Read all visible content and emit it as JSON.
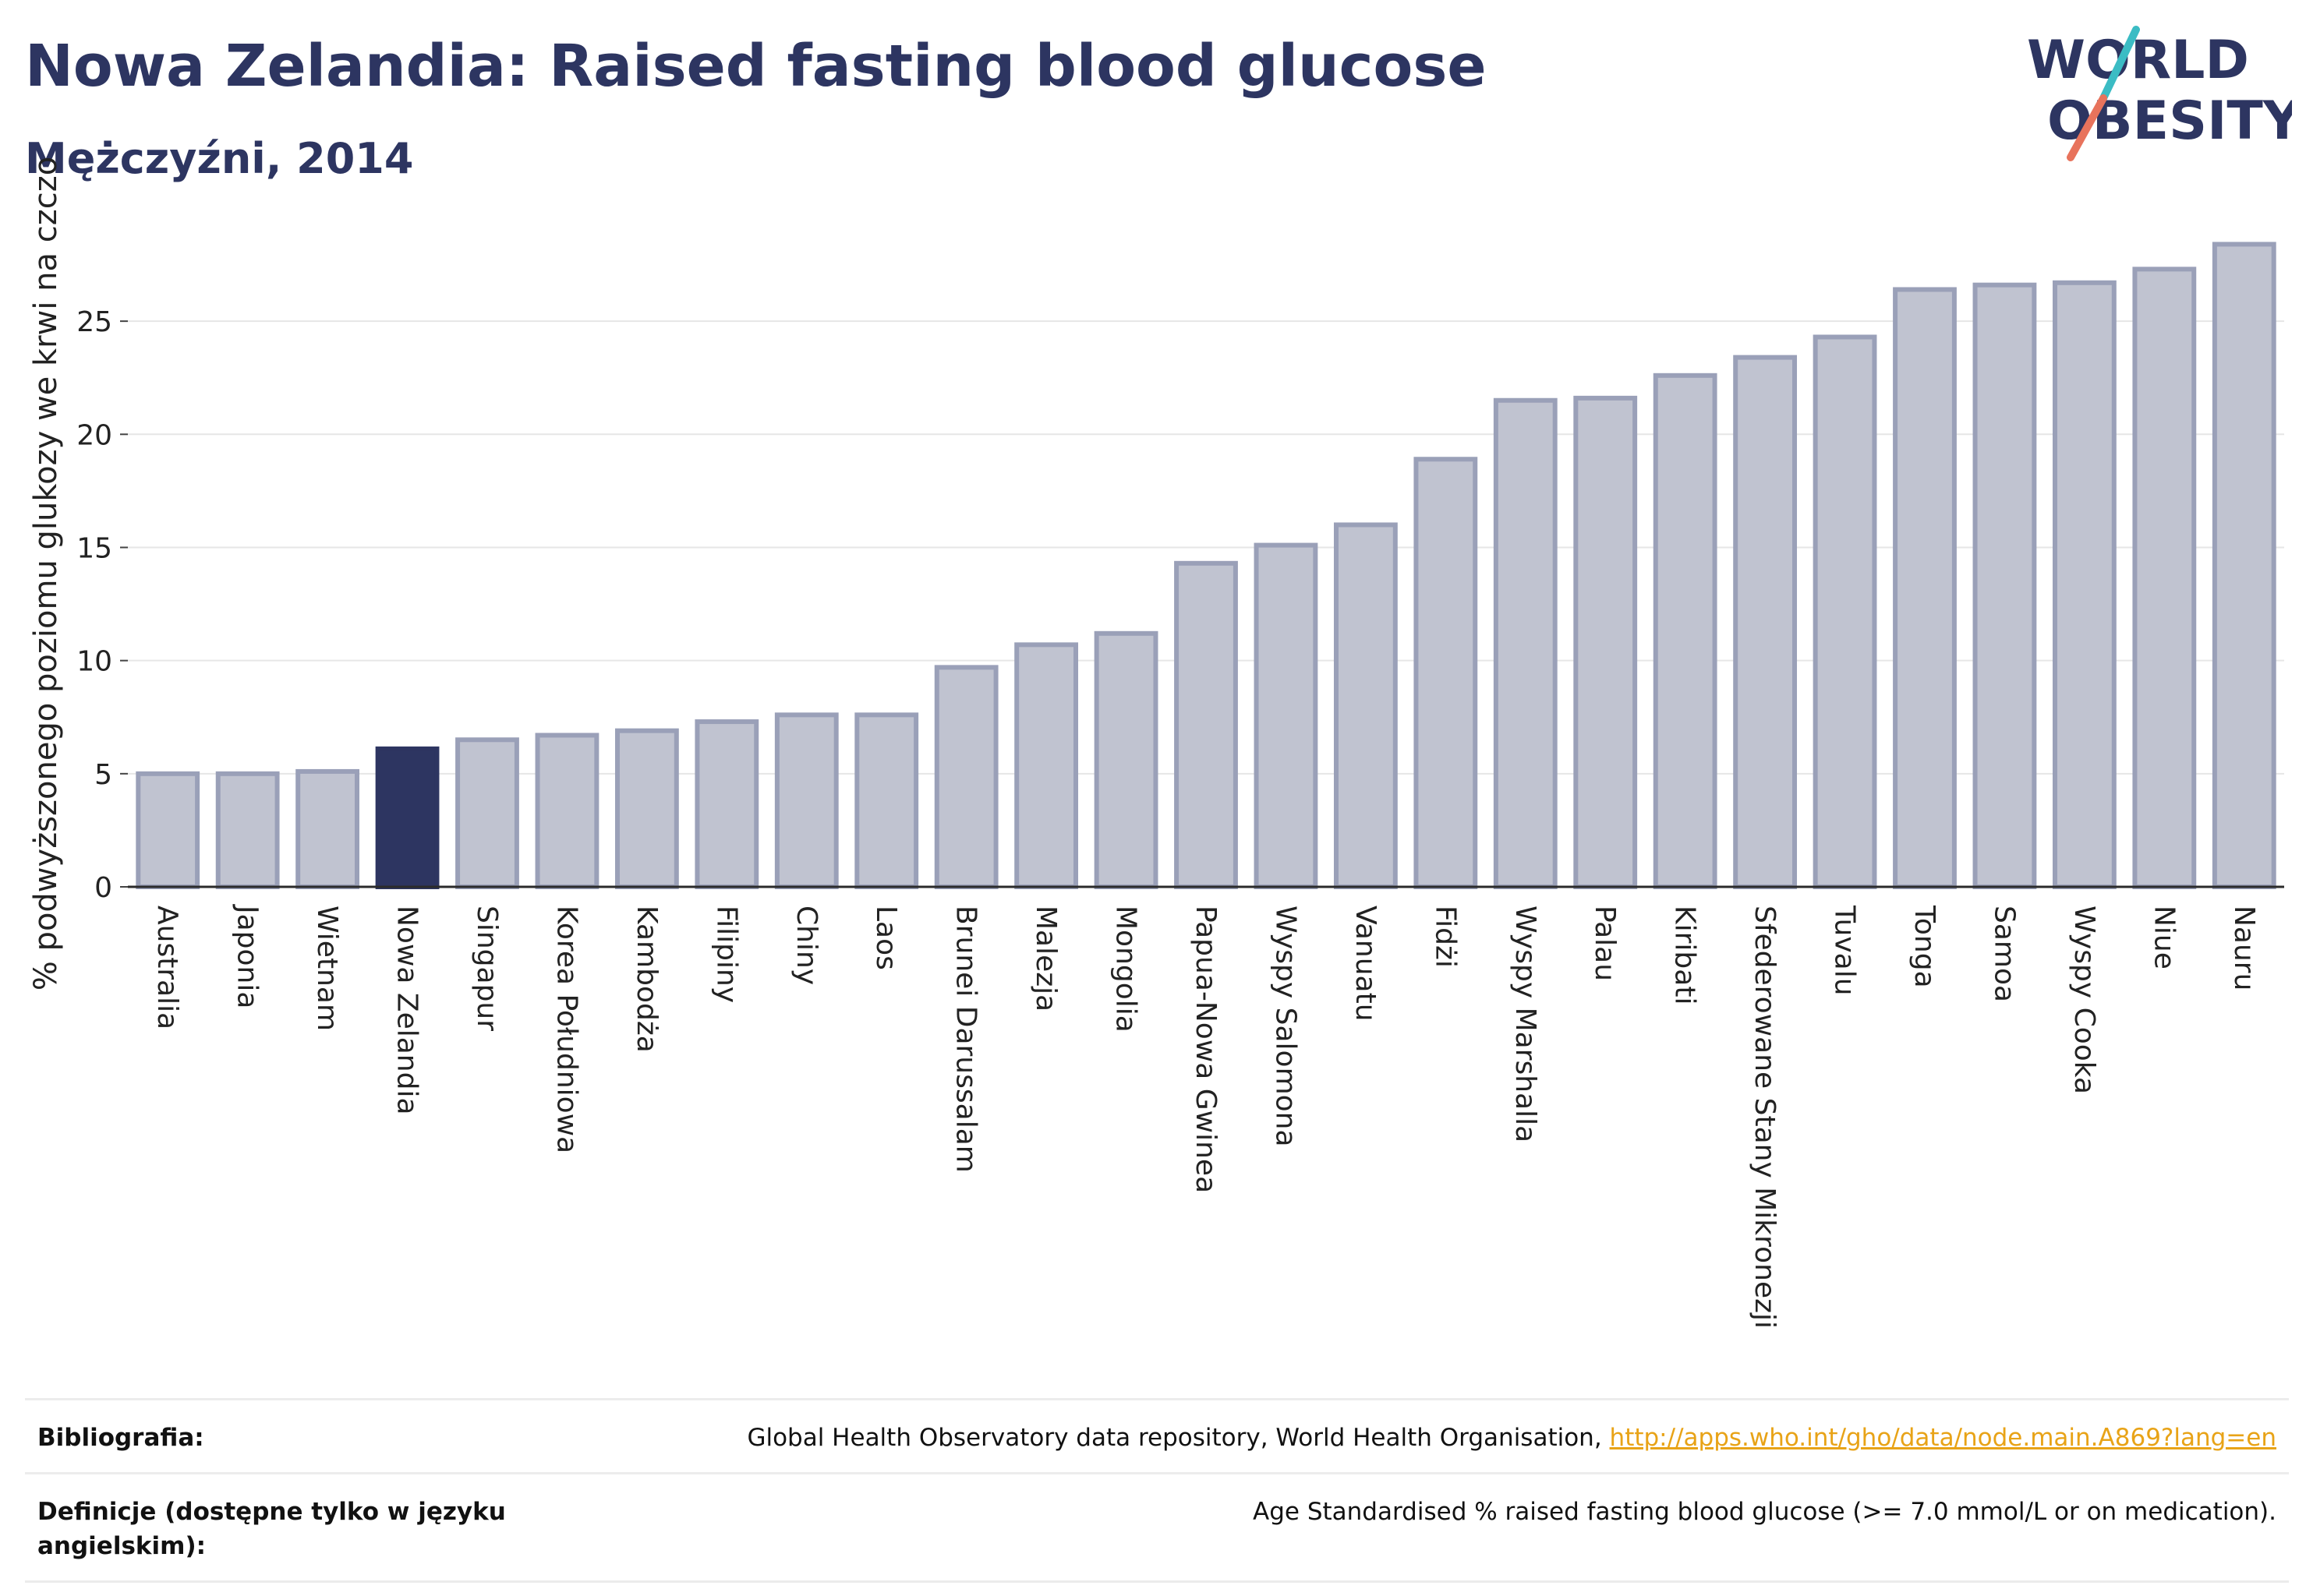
{
  "header": {
    "title": "Nowa Zelandia: Raised fasting blood glucose",
    "subtitle": "Mężczyźni, 2014",
    "logo_line1": "WORLD",
    "logo_line2": "OBESITY"
  },
  "colors": {
    "bar": "#c0c3d0",
    "bar_stroke": "#9aa0b8",
    "highlight": "#2d3561",
    "grid": "#e6e6e6",
    "logo_teal": "#3bbcc4",
    "logo_coral": "#e8735c"
  },
  "chart_data": {
    "type": "bar",
    "title": "Nowa Zelandia: Raised fasting blood glucose",
    "subtitle": "Mężczyźni, 2014",
    "ylabel": "% podwyższonego poziomu glukozy we krwi na czczo",
    "xlabel": "",
    "ylim": [
      0,
      29
    ],
    "yticks": [
      0,
      5,
      10,
      15,
      20,
      25
    ],
    "grid": true,
    "highlight": "Nowa Zelandia",
    "categories": [
      "Australia",
      "Japonia",
      "Wietnam",
      "Nowa Zelandia",
      "Singapur",
      "Korea Południowa",
      "Kambodża",
      "Filipiny",
      "Chiny",
      "Laos",
      "Brunei Darussalam",
      "Malezja",
      "Mongolia",
      "Papua-Nowa Gwinea",
      "Wyspy Salomona",
      "Vanuatu",
      "Fidżi",
      "Wyspy Marshalla",
      "Palau",
      "Kiribati",
      "Sfederowane Stany Mikronezji",
      "Tuvalu",
      "Tonga",
      "Samoa",
      "Wyspy Cooka",
      "Niue",
      "Nauru"
    ],
    "values": [
      5.0,
      5.0,
      5.1,
      6.1,
      6.5,
      6.7,
      6.9,
      7.3,
      7.6,
      7.6,
      9.7,
      10.7,
      11.2,
      14.3,
      15.1,
      16.0,
      18.9,
      21.5,
      21.6,
      22.6,
      23.4,
      24.3,
      26.4,
      26.6,
      26.7,
      27.3,
      28.4
    ]
  },
  "footer": {
    "bibliography_label": "Bibliografia:",
    "bibliography_text": "Global Health Observatory data repository, World Health Organisation, ",
    "bibliography_link": "http://apps.who.int/gho/data/node.main.A869?lang=en",
    "definitions_label": "Definicje (dostępne tylko w języku angielskim):",
    "definitions_text": "Age Standardised % raised fasting blood glucose (>= 7.0 mmol/L or on medication)."
  }
}
